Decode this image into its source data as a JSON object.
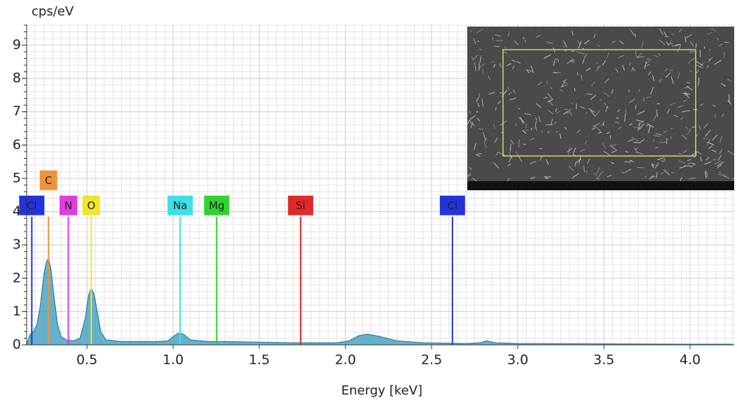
{
  "chart_data": {
    "type": "area",
    "y_label": "cps/eV",
    "x_label": "Energy [keV]",
    "xlim": [
      0.15,
      4.256
    ],
    "ylim": [
      0,
      9.62
    ],
    "xticks": [
      0.5,
      {
        "value": 1,
        "label": "1.0"
      },
      1.5,
      {
        "value": 2,
        "label": "2.0"
      },
      2.5,
      {
        "value": 3,
        "label": "3.0"
      },
      3.5,
      {
        "value": 4,
        "label": "4.0"
      }
    ],
    "yticks": [
      0,
      1,
      2,
      3,
      4,
      5,
      6,
      7,
      8,
      9
    ],
    "grid": true,
    "x": [
      0.15,
      0.17,
      0.19,
      0.21,
      0.23,
      0.25,
      0.265,
      0.277,
      0.29,
      0.31,
      0.33,
      0.35,
      0.38,
      0.42,
      0.46,
      0.49,
      0.51,
      0.525,
      0.54,
      0.56,
      0.58,
      0.61,
      0.7,
      0.8,
      0.9,
      0.97,
      1.0,
      1.03,
      1.06,
      1.1,
      1.2,
      1.3,
      1.5,
      1.7,
      1.8,
      1.95,
      2.02,
      2.08,
      2.13,
      2.2,
      2.3,
      2.45,
      2.7,
      2.78,
      2.82,
      2.87,
      3.0,
      3.5,
      4.0,
      4.25
    ],
    "series": [
      {
        "color": "#4ba3c3",
        "values": [
          0,
          0.3,
          0.4,
          0.6,
          1.2,
          2.1,
          2.5,
          2.6,
          2.3,
          1.4,
          0.6,
          0.25,
          0.15,
          0.12,
          0.2,
          0.8,
          1.5,
          1.7,
          1.55,
          1.0,
          0.4,
          0.15,
          0.1,
          0.1,
          0.1,
          0.12,
          0.25,
          0.35,
          0.32,
          0.15,
          0.1,
          0.1,
          0.08,
          0.06,
          0.06,
          0.06,
          0.12,
          0.28,
          0.32,
          0.25,
          0.12,
          0.06,
          0.04,
          0.06,
          0.12,
          0.06,
          0.04,
          0.03,
          0.02,
          0.02
        ]
      }
    ],
    "markers": [
      {
        "label": "Cl",
        "energy": 0.18,
        "height": 3.85,
        "color": "#2233dd"
      },
      {
        "label": "C",
        "energy": 0.277,
        "height": 3.85,
        "color": "#f0913a"
      },
      {
        "label": "N",
        "energy": 0.392,
        "height": 3.85,
        "color": "#e03ce0"
      },
      {
        "label": "O",
        "energy": 0.525,
        "height": 3.85,
        "color": "#f0e62a"
      },
      {
        "label": "Na",
        "energy": 1.041,
        "height": 3.85,
        "color": "#3ee0e8"
      },
      {
        "label": "Mg",
        "energy": 1.253,
        "height": 3.85,
        "color": "#2ed42e"
      },
      {
        "label": "Si",
        "energy": 1.74,
        "height": 3.85,
        "color": "#e02a2a"
      },
      {
        "label": "Cl",
        "energy": 2.621,
        "height": 3.85,
        "color": "#2233dd"
      }
    ]
  }
}
